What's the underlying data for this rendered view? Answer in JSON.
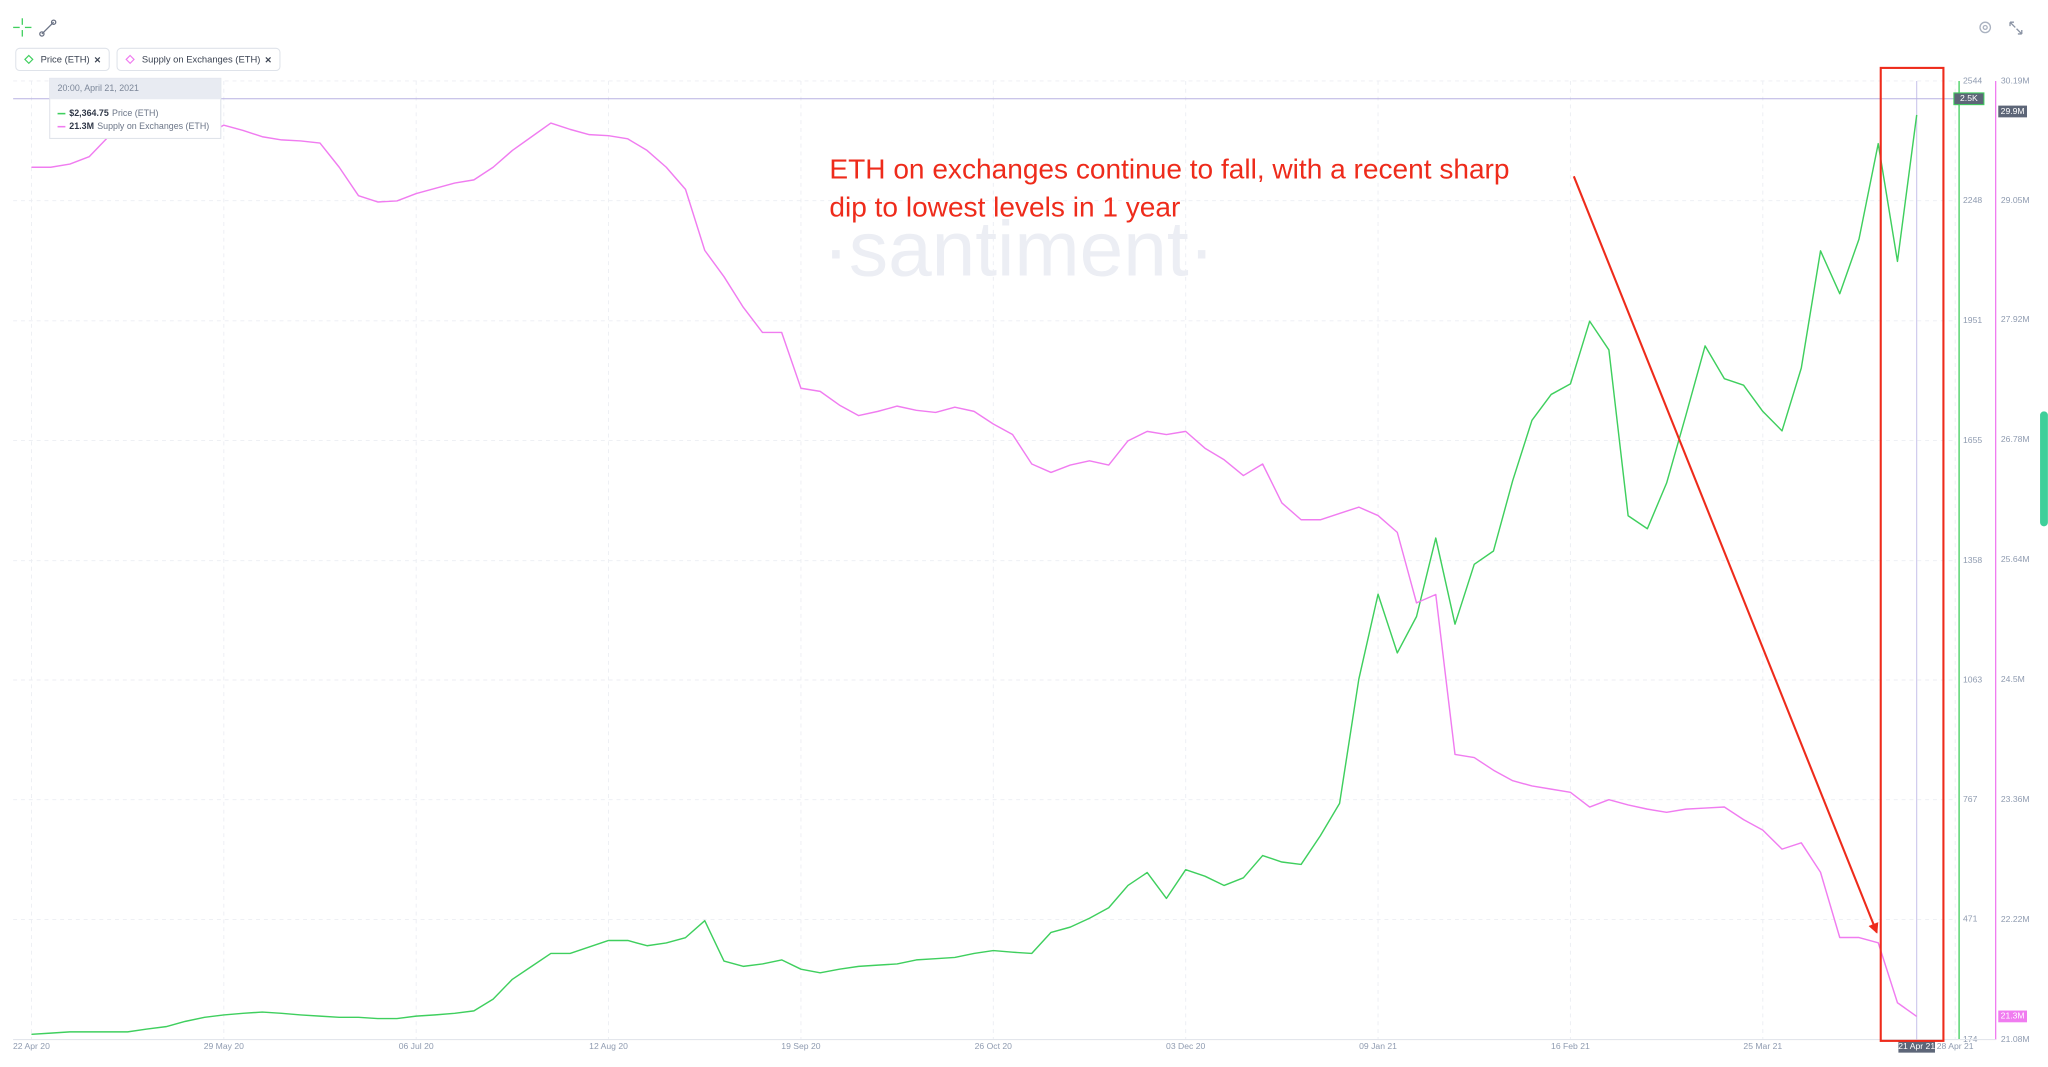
{
  "chart_data": {
    "type": "line",
    "watermark": "·santiment·",
    "annotation": [
      "ETH on exchanges continue to fall, with a recent sharp",
      "dip to lowest levels in 1 year"
    ],
    "categories": [
      "22 Apr 20",
      null,
      null,
      null,
      null,
      null,
      null,
      null,
      null,
      null,
      "29 May 20",
      null,
      null,
      null,
      null,
      null,
      null,
      null,
      null,
      null,
      "06 Jul 20",
      null,
      null,
      null,
      null,
      null,
      null,
      null,
      null,
      null,
      "12 Aug 20",
      null,
      null,
      null,
      null,
      null,
      null,
      null,
      null,
      null,
      "19 Sep 20",
      null,
      null,
      null,
      null,
      null,
      null,
      null,
      null,
      null,
      "26 Oct 20",
      null,
      null,
      null,
      null,
      null,
      null,
      null,
      null,
      null,
      "03 Dec 20",
      null,
      null,
      null,
      null,
      null,
      null,
      null,
      null,
      null,
      "09 Jan 21",
      null,
      null,
      null,
      null,
      null,
      null,
      null,
      null,
      null,
      "16 Feb 21",
      null,
      null,
      null,
      null,
      null,
      null,
      null,
      null,
      null,
      "25 Mar 21",
      null,
      null,
      null,
      null,
      null,
      null,
      null,
      "21 Apr 21",
      null,
      "28 Apr 21"
    ],
    "series": [
      {
        "name": "Price (ETH)",
        "color": "#3fcf5e",
        "axis": "y",
        "values": [
          187,
          190,
          193,
          193,
          193,
          193,
          200,
          206,
          219,
          229,
          235,
          239,
          242,
          239,
          235,
          232,
          229,
          229,
          226,
          226,
          232,
          235,
          239,
          245,
          274,
          323,
          355,
          387,
          387,
          403,
          419,
          419,
          406,
          413,
          426,
          468,
          368,
          355,
          361,
          371,
          348,
          339,
          348,
          355,
          358,
          361,
          371,
          374,
          377,
          387,
          394,
          390,
          387,
          439,
          452,
          474,
          500,
          555,
          587,
          523,
          594,
          578,
          555,
          574,
          629,
          613,
          607,
          678,
          758,
          1065,
          1275,
          1130,
          1220,
          1414,
          1201,
          1349,
          1382,
          1556,
          1705,
          1769,
          1795,
          1950,
          1879,
          1469,
          1437,
          1550,
          1717,
          1889,
          1808,
          1792,
          1727,
          1679,
          1834,
          2124,
          2018,
          2153,
          2389,
          2098,
          2460,
          null,
          null
        ]
      },
      {
        "name": "Supply on Exchanges (ETH)",
        "color": "#f07cf0",
        "axis": "y2",
        "values": [
          29370000,
          29370000,
          29400000,
          29470000,
          29660000,
          29740000,
          29770000,
          29740000,
          29680000,
          29670000,
          29770000,
          29720000,
          29660000,
          29630000,
          29620000,
          29600000,
          29370000,
          29100000,
          29040000,
          29050000,
          29120000,
          29170000,
          29220000,
          29250000,
          29370000,
          29530000,
          29660000,
          29790000,
          29730000,
          29680000,
          29670000,
          29640000,
          29530000,
          29370000,
          29160000,
          28580000,
          28330000,
          28040000,
          27800000,
          27800000,
          27270000,
          27240000,
          27110000,
          27010000,
          27050000,
          27100000,
          27060000,
          27040000,
          27090000,
          27050000,
          26930000,
          26830000,
          26550000,
          26470000,
          26540000,
          26580000,
          26540000,
          26770000,
          26860000,
          26830000,
          26860000,
          26700000,
          26590000,
          26440000,
          26550000,
          26180000,
          26020000,
          26020000,
          26080000,
          26140000,
          26060000,
          25900000,
          25230000,
          25310000,
          23790000,
          23760000,
          23640000,
          23540000,
          23490000,
          23460000,
          23430000,
          23290000,
          23360000,
          23310000,
          23270000,
          23240000,
          23270000,
          23280000,
          23290000,
          23170000,
          23070000,
          22890000,
          22950000,
          22670000,
          22050000,
          22050000,
          22000000,
          21430000,
          21300000,
          null,
          null
        ]
      }
    ],
    "ylim": [
      174,
      2544
    ],
    "yticks": [
      2544,
      2248,
      1951,
      1655,
      1358,
      1063,
      767,
      471,
      174
    ],
    "y2lim": [
      21080000,
      30190000
    ],
    "y2ticks": [
      {
        "value": 30190000,
        "label": "30.19M"
      },
      {
        "value": 29050000,
        "label": "29.05M"
      },
      {
        "value": 27920000,
        "label": "27.92M"
      },
      {
        "value": 26780000,
        "label": "26.78M"
      },
      {
        "value": 25640000,
        "label": "25.64M"
      },
      {
        "value": 24500000,
        "label": "24.5M"
      },
      {
        "value": 23360000,
        "label": "23.36M"
      },
      {
        "value": 22220000,
        "label": "22.22M"
      },
      {
        "value": 21080000,
        "label": "21.08M"
      }
    ],
    "grid": true,
    "crosshair": {
      "y": {
        "value": 2500,
        "label": "2.5K"
      },
      "y2": {
        "value": 29900000,
        "label": "29.9M"
      }
    },
    "last_value_tag": {
      "value": 21300000,
      "label": "21.3M"
    },
    "tooltip": {
      "time": "20:00, April 21, 2021",
      "entries": [
        {
          "value": 2364.75,
          "label": "$2,364.75"
        },
        {
          "value": 21300000,
          "label": "21.3M"
        }
      ]
    }
  }
}
